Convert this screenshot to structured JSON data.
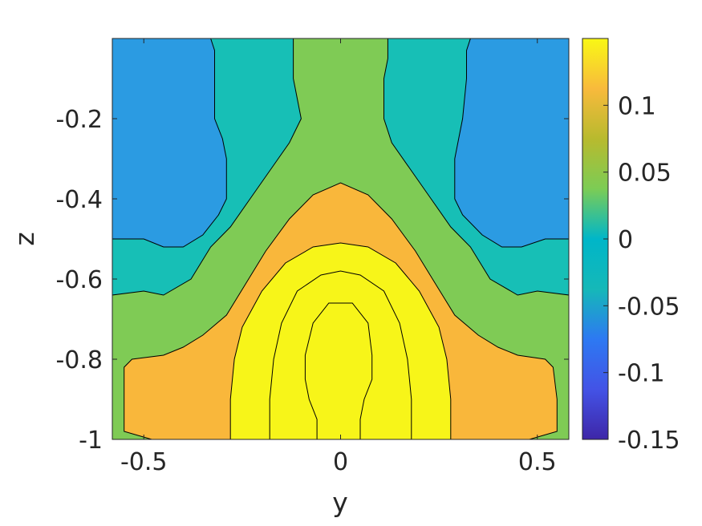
{
  "chart_data": {
    "type": "contour",
    "title": "",
    "xlabel": "y",
    "ylabel": "z",
    "xlim": [
      -0.58,
      0.58
    ],
    "ylim": [
      -1.0,
      0.0
    ],
    "x_ticks": [
      -0.5,
      0,
      0.5
    ],
    "x_tick_labels": [
      "-0.5",
      "0",
      "0.5"
    ],
    "y_ticks": [
      -1,
      -0.8,
      -0.6,
      -0.4,
      -0.2
    ],
    "y_tick_labels": [
      "-1",
      "-0.8",
      "-0.6",
      "-0.4",
      "-0.2"
    ],
    "grid": false,
    "colorbar": {
      "position": "right",
      "limits": [
        -0.15,
        0.15
      ],
      "ticks": [
        0.1,
        0.05,
        0,
        -0.05,
        -0.1,
        -0.15
      ],
      "tick_labels": [
        "0.1",
        "0.05",
        "0",
        "-0.05",
        "-0.1",
        "-0.15"
      ],
      "colormap": "parula",
      "colors": [
        "#3e26a8",
        "#4353e6",
        "#2d79f2",
        "#15b8b8",
        "#00b6c8",
        "#7ccc55",
        "#b8ba2e",
        "#f8ba3c",
        "#f9f815"
      ]
    },
    "contour_levels": [
      -0.05,
      0,
      0.05,
      0.1,
      0.125,
      0.15
    ],
    "filled_regions": [
      {
        "level_range": [
          -0.05,
          0
        ],
        "color": "#2b9be2"
      },
      {
        "level_range": [
          0,
          0.05
        ],
        "color": "#17bfb6"
      },
      {
        "level_range": [
          0.05,
          0.1
        ],
        "color": "#7fcb55"
      },
      {
        "level_range": [
          0.1,
          0.125
        ],
        "color": "#f9b73b"
      },
      {
        "level_range": [
          0.125,
          0.15
        ],
        "color": "#f7f519"
      }
    ],
    "contours": [
      {
        "name": "blue-left",
        "color": "#2b9be2",
        "points": [
          [
            -0.58,
            0
          ],
          [
            -0.33,
            0
          ],
          [
            -0.32,
            -0.03
          ],
          [
            -0.32,
            -0.1
          ],
          [
            -0.32,
            -0.2
          ],
          [
            -0.3,
            -0.25
          ],
          [
            -0.29,
            -0.3
          ],
          [
            -0.29,
            -0.4
          ],
          [
            -0.31,
            -0.44
          ],
          [
            -0.35,
            -0.49
          ],
          [
            -0.4,
            -0.52
          ],
          [
            -0.45,
            -0.52
          ],
          [
            -0.5,
            -0.5
          ],
          [
            -0.58,
            -0.5
          ]
        ]
      },
      {
        "name": "blue-right",
        "color": "#2b9be2",
        "points": [
          [
            0.58,
            0
          ],
          [
            0.33,
            0
          ],
          [
            0.32,
            -0.03
          ],
          [
            0.32,
            -0.1
          ],
          [
            0.31,
            -0.2
          ],
          [
            0.3,
            -0.25
          ],
          [
            0.29,
            -0.3
          ],
          [
            0.29,
            -0.4
          ],
          [
            0.31,
            -0.44
          ],
          [
            0.36,
            -0.49
          ],
          [
            0.41,
            -0.52
          ],
          [
            0.46,
            -0.52
          ],
          [
            0.52,
            -0.5
          ],
          [
            0.58,
            -0.5
          ]
        ]
      },
      {
        "name": "green-main",
        "color": "#7fcb55",
        "points": [
          [
            -0.12,
            0
          ],
          [
            -0.12,
            -0.05
          ],
          [
            -0.12,
            -0.1
          ],
          [
            -0.11,
            -0.15
          ],
          [
            -0.1,
            -0.2
          ],
          [
            -0.13,
            -0.26
          ],
          [
            -0.18,
            -0.33
          ],
          [
            -0.23,
            -0.4
          ],
          [
            -0.28,
            -0.47
          ],
          [
            -0.33,
            -0.52
          ],
          [
            -0.38,
            -0.6
          ],
          [
            -0.45,
            -0.64
          ],
          [
            -0.5,
            -0.63
          ],
          [
            -0.58,
            -0.64
          ],
          [
            -0.58,
            -1
          ],
          [
            0.58,
            -1
          ],
          [
            0.58,
            -0.64
          ],
          [
            0.5,
            -0.63
          ],
          [
            0.45,
            -0.64
          ],
          [
            0.38,
            -0.6
          ],
          [
            0.33,
            -0.52
          ],
          [
            0.28,
            -0.47
          ],
          [
            0.23,
            -0.4
          ],
          [
            0.18,
            -0.33
          ],
          [
            0.13,
            -0.26
          ],
          [
            0.11,
            -0.2
          ],
          [
            0.11,
            -0.15
          ],
          [
            0.11,
            -0.1
          ],
          [
            0.12,
            -0.05
          ],
          [
            0.12,
            0
          ]
        ]
      },
      {
        "name": "orange",
        "color": "#f9b73b",
        "points": [
          [
            -0.55,
            -0.98
          ],
          [
            -0.55,
            -0.9
          ],
          [
            -0.55,
            -0.82
          ],
          [
            -0.53,
            -0.8
          ],
          [
            -0.45,
            -0.79
          ],
          [
            -0.4,
            -0.77
          ],
          [
            -0.35,
            -0.74
          ],
          [
            -0.29,
            -0.69
          ],
          [
            -0.24,
            -0.61
          ],
          [
            -0.19,
            -0.53
          ],
          [
            -0.13,
            -0.45
          ],
          [
            -0.07,
            -0.39
          ],
          [
            0,
            -0.36
          ],
          [
            0.07,
            -0.39
          ],
          [
            0.13,
            -0.45
          ],
          [
            0.19,
            -0.53
          ],
          [
            0.24,
            -0.61
          ],
          [
            0.29,
            -0.69
          ],
          [
            0.35,
            -0.74
          ],
          [
            0.4,
            -0.77
          ],
          [
            0.45,
            -0.79
          ],
          [
            0.52,
            -0.8
          ],
          [
            0.54,
            -0.82
          ],
          [
            0.55,
            -0.9
          ],
          [
            0.55,
            -0.98
          ],
          [
            0.48,
            -1
          ],
          [
            -0.48,
            -1
          ]
        ]
      },
      {
        "name": "yellow-outer",
        "color": "#f7f519",
        "points": [
          [
            -0.28,
            -1
          ],
          [
            -0.28,
            -0.9
          ],
          [
            -0.27,
            -0.8
          ],
          [
            -0.25,
            -0.72
          ],
          [
            -0.2,
            -0.63
          ],
          [
            -0.14,
            -0.56
          ],
          [
            -0.07,
            -0.52
          ],
          [
            0,
            -0.51
          ],
          [
            0.07,
            -0.52
          ],
          [
            0.14,
            -0.56
          ],
          [
            0.2,
            -0.63
          ],
          [
            0.25,
            -0.72
          ],
          [
            0.27,
            -0.8
          ],
          [
            0.28,
            -0.9
          ],
          [
            0.28,
            -1
          ]
        ]
      }
    ],
    "contour_lines": [
      {
        "name": "inner-arch",
        "points": [
          [
            -0.18,
            -1
          ],
          [
            -0.18,
            -0.9
          ],
          [
            -0.17,
            -0.8
          ],
          [
            -0.15,
            -0.71
          ],
          [
            -0.11,
            -0.63
          ],
          [
            -0.05,
            -0.59
          ],
          [
            0,
            -0.58
          ],
          [
            0.05,
            -0.59
          ],
          [
            0.11,
            -0.63
          ],
          [
            0.15,
            -0.71
          ],
          [
            0.17,
            -0.8
          ],
          [
            0.18,
            -0.9
          ],
          [
            0.18,
            -1
          ]
        ]
      },
      {
        "name": "core",
        "points": [
          [
            -0.06,
            -1
          ],
          [
            -0.06,
            -0.95
          ],
          [
            -0.08,
            -0.9
          ],
          [
            -0.09,
            -0.85
          ],
          [
            -0.09,
            -0.79
          ],
          [
            -0.07,
            -0.71
          ],
          [
            -0.03,
            -0.66
          ],
          [
            0,
            -0.66
          ],
          [
            0.03,
            -0.66
          ],
          [
            0.07,
            -0.71
          ],
          [
            0.08,
            -0.79
          ],
          [
            0.08,
            -0.85
          ],
          [
            0.06,
            -0.9
          ],
          [
            0.05,
            -0.95
          ],
          [
            0.05,
            -1
          ]
        ]
      }
    ]
  }
}
